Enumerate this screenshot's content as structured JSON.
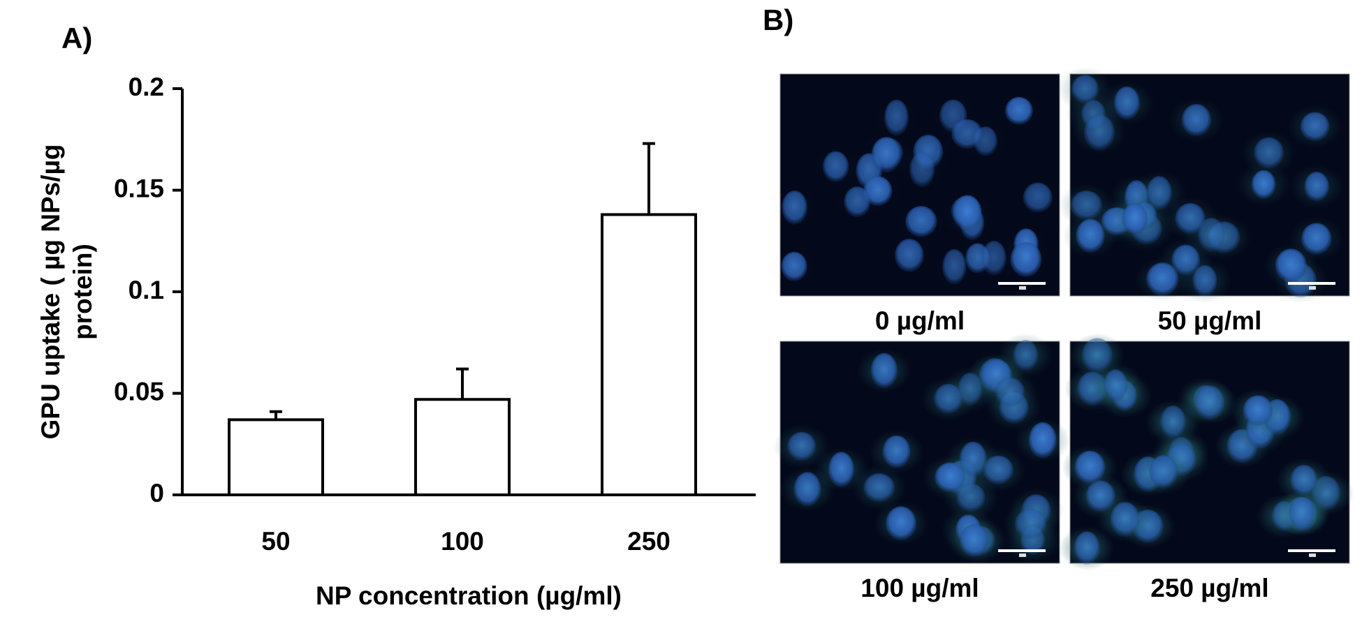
{
  "chart_data": {
    "type": "bar",
    "panel_label": "A)",
    "ylabel": [
      "GPU uptake ( µg NPs/µg",
      "protein)"
    ],
    "xlabel": "NP concentration (µg/ml)",
    "categories": [
      "50",
      "100",
      "250"
    ],
    "values": [
      0.037,
      0.047,
      0.138
    ],
    "errors": [
      0.004,
      0.015,
      0.035
    ],
    "color": "#ffffff",
    "ylim": [
      0,
      0.2
    ],
    "yticks": [
      0,
      0.05,
      0.1,
      0.15,
      0.2
    ],
    "grid": false
  },
  "panel_b": {
    "label": "B)",
    "images": [
      {
        "caption": "0 µg/ml"
      },
      {
        "caption": "50 µg/ml"
      },
      {
        "caption": "100 µg/ml"
      },
      {
        "caption": "250 µg/ml"
      }
    ]
  }
}
